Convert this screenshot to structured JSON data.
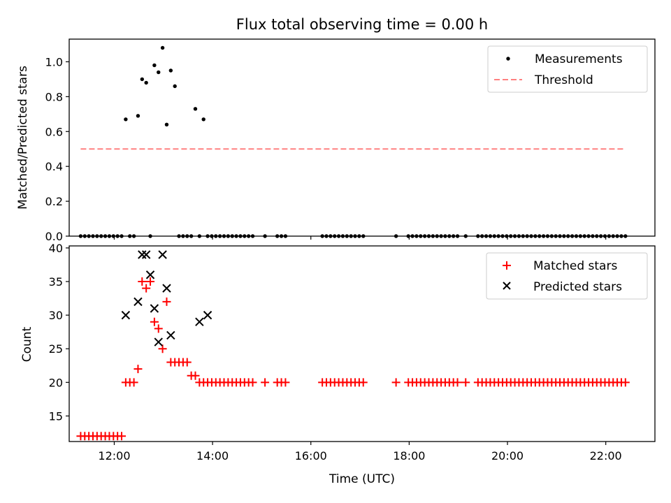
{
  "chart_data": [
    {
      "type": "scatter",
      "title": "Flux total observing time = 0.00 h",
      "xlabel": "",
      "ylabel": "Matched/Predicted stars",
      "xlim": [
        "11:05",
        "23:00"
      ],
      "ylim": [
        0,
        1.13
      ],
      "xticks": [
        "12:00",
        "14:00",
        "16:00",
        "18:00",
        "20:00",
        "22:00"
      ],
      "yticks": [
        0.0,
        0.2,
        0.4,
        0.6,
        0.8,
        1.0
      ],
      "ytick_labels": [
        "0.0",
        "0.2",
        "0.4",
        "0.6",
        "0.8",
        "1.0"
      ],
      "legend_position": "top-right",
      "grid": false,
      "series": [
        {
          "name": "Measurements",
          "marker": "dot",
          "color": "#000000",
          "x": [
            "11:19",
            "11:24",
            "11:29",
            "11:34",
            "11:39",
            "11:44",
            "11:49",
            "11:54",
            "11:59",
            "12:04",
            "12:09",
            "12:14",
            "12:19",
            "12:24",
            "12:29",
            "12:34",
            "12:39",
            "12:44",
            "12:49",
            "12:54",
            "12:59",
            "13:04",
            "13:09",
            "13:14",
            "13:19",
            "13:24",
            "13:29",
            "13:34",
            "13:39",
            "13:44",
            "13:49",
            "13:54",
            "13:59",
            "14:04",
            "14:09",
            "14:14",
            "14:19",
            "14:24",
            "14:29",
            "14:34",
            "14:39",
            "14:44",
            "14:49",
            "15:04",
            "15:19",
            "15:24",
            "15:29",
            "16:14",
            "16:19",
            "16:24",
            "16:29",
            "16:34",
            "16:39",
            "16:44",
            "16:49",
            "16:54",
            "16:59",
            "17:04",
            "17:44",
            "17:59",
            "18:04",
            "18:09",
            "18:14",
            "18:19",
            "18:24",
            "18:29",
            "18:34",
            "18:39",
            "18:44",
            "18:49",
            "18:54",
            "18:59",
            "19:09",
            "19:24",
            "19:29",
            "19:34",
            "19:39",
            "19:44",
            "19:49",
            "19:54",
            "19:59",
            "20:04",
            "20:09",
            "20:14",
            "20:19",
            "20:24",
            "20:29",
            "20:34",
            "20:39",
            "20:44",
            "20:49",
            "20:54",
            "20:59",
            "21:04",
            "21:09",
            "21:14",
            "21:19",
            "21:24",
            "21:29",
            "21:34",
            "21:39",
            "21:44",
            "21:49",
            "21:54",
            "21:59",
            "22:04",
            "22:09",
            "22:14",
            "22:19",
            "22:24"
          ],
          "y": [
            0,
            0,
            0,
            0,
            0,
            0,
            0,
            0,
            0,
            0,
            0,
            0.67,
            0,
            0,
            0.69,
            0.9,
            0.88,
            0,
            0.98,
            0.94,
            1.08,
            0.64,
            0.95,
            0.86,
            0,
            0,
            0,
            0,
            0.73,
            0,
            0.67,
            0,
            0,
            0,
            0,
            0,
            0,
            0,
            0,
            0,
            0,
            0,
            0,
            0,
            0,
            0,
            0,
            0,
            0,
            0,
            0,
            0,
            0,
            0,
            0,
            0,
            0,
            0,
            0,
            0,
            0,
            0,
            0,
            0,
            0,
            0,
            0,
            0,
            0,
            0,
            0,
            0,
            0,
            0,
            0,
            0,
            0,
            0,
            0,
            0,
            0,
            0,
            0,
            0,
            0,
            0,
            0,
            0,
            0,
            0,
            0,
            0,
            0,
            0,
            0,
            0,
            0,
            0,
            0,
            0,
            0,
            0,
            0,
            0,
            0,
            0,
            0,
            0,
            0,
            0
          ]
        },
        {
          "name": "Threshold",
          "marker": "dashed-line",
          "color": "#ff8080",
          "x": [
            "11:19",
            "22:24"
          ],
          "y": [
            0.5,
            0.5
          ]
        }
      ]
    },
    {
      "type": "scatter",
      "title": "",
      "xlabel": "Time (UTC)",
      "ylabel": "Count",
      "xlim": [
        "11:05",
        "23:00"
      ],
      "ylim": [
        11.2,
        40.3
      ],
      "xticks": [
        "12:00",
        "14:00",
        "16:00",
        "18:00",
        "20:00",
        "22:00"
      ],
      "yticks": [
        15,
        20,
        25,
        30,
        35,
        40
      ],
      "legend_position": "top-right",
      "grid": false,
      "series": [
        {
          "name": "Matched stars",
          "marker": "plus",
          "color": "#ff0000",
          "x": [
            "11:19",
            "11:24",
            "11:29",
            "11:34",
            "11:39",
            "11:44",
            "11:49",
            "11:54",
            "11:59",
            "12:04",
            "12:09",
            "12:14",
            "12:19",
            "12:24",
            "12:29",
            "12:34",
            "12:39",
            "12:44",
            "12:49",
            "12:54",
            "12:59",
            "13:04",
            "13:09",
            "13:14",
            "13:19",
            "13:24",
            "13:29",
            "13:34",
            "13:39",
            "13:44",
            "13:49",
            "13:54",
            "13:59",
            "14:04",
            "14:09",
            "14:14",
            "14:19",
            "14:24",
            "14:29",
            "14:34",
            "14:39",
            "14:44",
            "14:49",
            "15:04",
            "15:19",
            "15:24",
            "15:29",
            "16:14",
            "16:19",
            "16:24",
            "16:29",
            "16:34",
            "16:39",
            "16:44",
            "16:49",
            "16:54",
            "16:59",
            "17:04",
            "17:44",
            "17:59",
            "18:04",
            "18:09",
            "18:14",
            "18:19",
            "18:24",
            "18:29",
            "18:34",
            "18:39",
            "18:44",
            "18:49",
            "18:54",
            "18:59",
            "19:09",
            "19:24",
            "19:29",
            "19:34",
            "19:39",
            "19:44",
            "19:49",
            "19:54",
            "19:59",
            "20:04",
            "20:09",
            "20:14",
            "20:19",
            "20:24",
            "20:29",
            "20:34",
            "20:39",
            "20:44",
            "20:49",
            "20:54",
            "20:59",
            "21:04",
            "21:09",
            "21:14",
            "21:19",
            "21:24",
            "21:29",
            "21:34",
            "21:39",
            "21:44",
            "21:49",
            "21:54",
            "21:59",
            "22:04",
            "22:09",
            "22:14",
            "22:19",
            "22:24"
          ],
          "y": [
            12,
            12,
            12,
            12,
            12,
            12,
            12,
            12,
            12,
            12,
            12,
            20,
            20,
            20,
            22,
            35,
            34,
            35,
            29,
            28,
            25,
            32,
            23,
            23,
            23,
            23,
            23,
            21,
            21,
            20,
            20,
            20,
            20,
            20,
            20,
            20,
            20,
            20,
            20,
            20,
            20,
            20,
            20,
            20,
            20,
            20,
            20,
            20,
            20,
            20,
            20,
            20,
            20,
            20,
            20,
            20,
            20,
            20,
            20,
            20,
            20,
            20,
            20,
            20,
            20,
            20,
            20,
            20,
            20,
            20,
            20,
            20,
            20,
            20,
            20,
            20,
            20,
            20,
            20,
            20,
            20,
            20,
            20,
            20,
            20,
            20,
            20,
            20,
            20,
            20,
            20,
            20,
            20,
            20,
            20,
            20,
            20,
            20,
            20,
            20,
            20,
            20,
            20,
            20,
            20,
            20,
            20,
            20,
            20,
            20
          ]
        },
        {
          "name": "Predicted stars",
          "marker": "x",
          "color": "#000000",
          "x": [
            "12:14",
            "12:29",
            "12:34",
            "12:39",
            "12:44",
            "12:49",
            "12:54",
            "12:59",
            "13:04",
            "13:09",
            "13:44",
            "13:54"
          ],
          "y": [
            30,
            32,
            39,
            39,
            36,
            31,
            26,
            39,
            34,
            27,
            29,
            30
          ]
        }
      ]
    }
  ]
}
